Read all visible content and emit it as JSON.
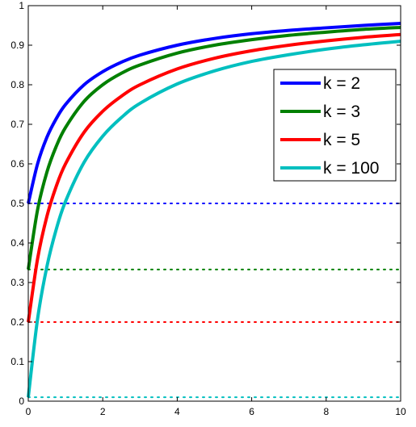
{
  "chart_data": {
    "type": "line",
    "title": "",
    "xlabel": "",
    "ylabel": "",
    "xlim": [
      0,
      10
    ],
    "ylim": [
      0,
      1
    ],
    "xticks": [
      "0",
      "2",
      "4",
      "6",
      "8",
      "10"
    ],
    "yticks": [
      "0",
      "0.1",
      "0.2",
      "0.3",
      "0.4",
      "0.5",
      "0.6",
      "0.7",
      "0.8",
      "0.9",
      "1"
    ],
    "grid": false,
    "legend_position": "upper-right",
    "x": [
      0,
      0.25,
      0.5,
      0.75,
      1,
      1.5,
      2,
      2.5,
      3,
      4,
      5,
      6,
      7,
      8,
      9,
      10
    ],
    "series": [
      {
        "name": "k = 2",
        "color": "#0000ff",
        "values": [
          0.5,
          0.6,
          0.667,
          0.714,
          0.75,
          0.8,
          0.833,
          0.857,
          0.875,
          0.9,
          0.917,
          0.929,
          0.9375,
          0.944,
          0.95,
          0.955
        ],
        "baseline": 0.5
      },
      {
        "name": "k = 3",
        "color": "#008000",
        "values": [
          0.333,
          0.484,
          0.579,
          0.644,
          0.692,
          0.758,
          0.8,
          0.829,
          0.85,
          0.88,
          0.9,
          0.914,
          0.925,
          0.933,
          0.94,
          0.945
        ],
        "baseline": 0.333
      },
      {
        "name": "k = 5",
        "color": "#ff0000",
        "values": [
          0.2,
          0.36,
          0.467,
          0.543,
          0.6,
          0.68,
          0.733,
          0.771,
          0.8,
          0.84,
          0.867,
          0.886,
          0.9,
          0.911,
          0.92,
          0.927
        ],
        "baseline": 0.2
      },
      {
        "name": "k = 100",
        "color": "#00bfbf",
        "values": [
          0.01,
          0.208,
          0.34,
          0.434,
          0.505,
          0.604,
          0.67,
          0.717,
          0.753,
          0.802,
          0.835,
          0.859,
          0.876,
          0.89,
          0.901,
          0.91
        ],
        "baseline": 0.01
      }
    ]
  }
}
